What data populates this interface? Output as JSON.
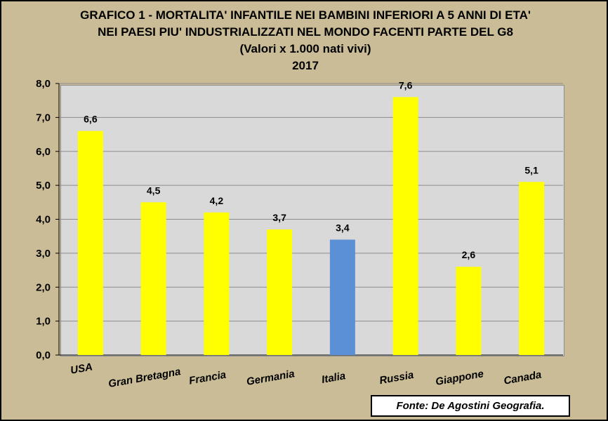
{
  "chart_data": {
    "type": "bar",
    "title_lines": [
      "GRAFICO 1 - MORTALITA' INFANTILE NEI BAMBINI INFERIORI A 5 ANNI DI ETA'",
      "NEI PAESI PIU' INDUSTRIALIZZATI NEL MONDO FACENTI PARTE DEL G8",
      "(Valori x 1.000 nati vivi)",
      "2017"
    ],
    "categories": [
      "USA",
      "Gran Bretagna",
      "Francia",
      "Germania",
      "Italia",
      "Russia",
      "Giappone",
      "Canada"
    ],
    "values": [
      6.6,
      4.5,
      4.2,
      3.7,
      3.4,
      7.6,
      2.6,
      5.1
    ],
    "value_labels": [
      "6,6",
      "4,5",
      "4,2",
      "3,7",
      "3,4",
      "7,6",
      "2,6",
      "5,1"
    ],
    "bar_colors": [
      "#ffff00",
      "#ffff00",
      "#ffff00",
      "#ffff00",
      "#5b8fd6",
      "#ffff00",
      "#ffff00",
      "#ffff00"
    ],
    "ylim": [
      0,
      8
    ],
    "y_ticks": [
      0,
      1,
      2,
      3,
      4,
      5,
      6,
      7,
      8
    ],
    "y_tick_labels": [
      "0,0",
      "1,0",
      "2,0",
      "3,0",
      "4,0",
      "5,0",
      "6,0",
      "7,0",
      "8,0"
    ],
    "grid": true,
    "xlabel": "",
    "ylabel": ""
  },
  "source_note": "Fonte: De Agostini Geografia."
}
